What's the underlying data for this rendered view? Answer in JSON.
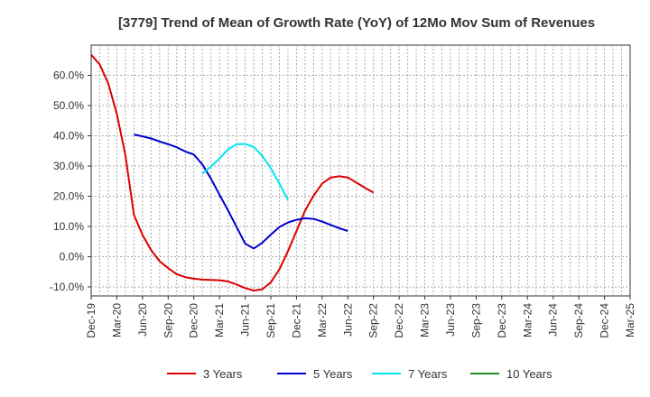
{
  "chart_data": {
    "type": "line",
    "title": "[3779]  Trend of Mean of Growth Rate (YoY) of 12Mo Mov Sum of Revenues",
    "xlabel": "",
    "ylabel": "",
    "ylim": [
      -0.13,
      0.7
    ],
    "yticks": [
      -0.1,
      0.0,
      0.1,
      0.2,
      0.3,
      0.4,
      0.5,
      0.6
    ],
    "ytick_labels": [
      "-10.0%",
      "0.0%",
      "10.0%",
      "20.0%",
      "30.0%",
      "40.0%",
      "50.0%",
      "60.0%"
    ],
    "x_tick_labels": [
      "Dec-19",
      "Mar-20",
      "Jun-20",
      "Sep-20",
      "Dec-20",
      "Mar-21",
      "Jun-21",
      "Sep-21",
      "Dec-21",
      "Mar-22",
      "Jun-22",
      "Sep-22",
      "Dec-22",
      "Mar-23",
      "Jun-23",
      "Sep-23",
      "Dec-23",
      "Mar-24",
      "Jun-24",
      "Sep-24",
      "Dec-24",
      "Mar-25"
    ],
    "grid": true,
    "legend_position": "bottom",
    "series": [
      {
        "name": "3 Years",
        "color": "#dd0000",
        "start_index": 0,
        "values": [
          0.668,
          0.636,
          0.573,
          0.472,
          0.336,
          0.138,
          0.072,
          0.022,
          -0.015,
          -0.038,
          -0.058,
          -0.068,
          -0.073,
          -0.076,
          -0.077,
          -0.078,
          -0.082,
          -0.092,
          -0.104,
          -0.112,
          -0.108,
          -0.085,
          -0.042,
          0.018,
          0.085,
          0.152,
          0.202,
          0.242,
          0.262,
          0.266,
          0.262,
          0.245,
          0.228,
          0.212
        ]
      },
      {
        "name": "5 Years",
        "color": "#0000cc",
        "start_index": 5,
        "values": [
          0.404,
          0.398,
          0.391,
          0.381,
          0.372,
          0.362,
          0.348,
          0.338,
          0.305,
          0.258,
          0.205,
          0.153,
          0.098,
          0.043,
          0.027,
          0.046,
          0.073,
          0.098,
          0.113,
          0.122,
          0.127,
          0.125,
          0.116,
          0.105,
          0.094,
          0.085
        ]
      },
      {
        "name": "7 Years",
        "color": "#00e5ee",
        "start_index": 13,
        "values": [
          0.275,
          0.298,
          0.325,
          0.355,
          0.372,
          0.373,
          0.363,
          0.333,
          0.293,
          0.242,
          0.188
        ]
      },
      {
        "name": "10 Years",
        "color": "#228b22",
        "start_index": 0,
        "values": []
      }
    ]
  }
}
